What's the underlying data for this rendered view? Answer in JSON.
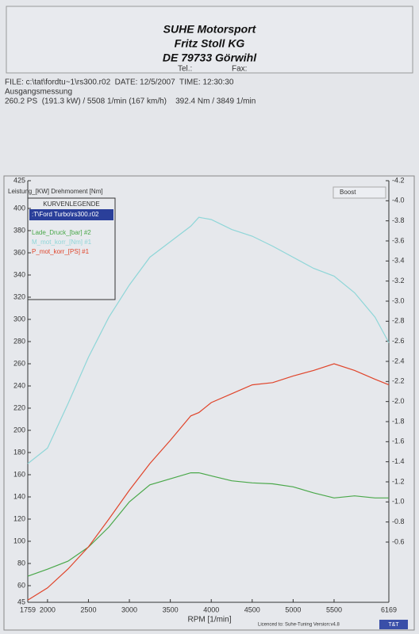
{
  "header": {
    "company": "SUHE Motorsport",
    "name": "Fritz Stoll KG",
    "address": "DE 79733 Görwihl",
    "tel": "Tel.:",
    "fax": "Fax:"
  },
  "info": {
    "file": "FILE: c:\\tat\\fordtu~1\\rs300.r02  DATE: 12/5/2007  TIME: 12:30:30",
    "description": "Ausgangsmessung",
    "summary": "260.2 PS  (191.3 kW) / 5508 1/min (167 km/h)    392.4 Nm / 3849 1/min"
  },
  "chart_data": {
    "type": "line",
    "y_label": "Leistung_[KW] Drehmoment [Nm]",
    "y2_label": "Boost",
    "x_label": "RPM  [1/min]",
    "legend_title": "KURVENLEGENDE",
    "file_label": ":T\\Ford Turbo\\rs300.r02",
    "x": [
      1759,
      2000,
      2250,
      2500,
      2750,
      3000,
      3250,
      3500,
      3750,
      3849,
      4000,
      4250,
      4500,
      4750,
      5000,
      5250,
      5500,
      5750,
      6000,
      6169
    ],
    "xlim": [
      1759,
      6169
    ],
    "xticks": [
      1759,
      2000,
      2500,
      3000,
      3500,
      4000,
      4500,
      5000,
      5500,
      6169
    ],
    "ylim": [
      45,
      425
    ],
    "yticks": [
      45,
      60,
      80,
      100,
      120,
      140,
      160,
      180,
      200,
      220,
      240,
      260,
      280,
      300,
      320,
      340,
      360,
      380,
      400,
      425
    ],
    "y2lim": [
      0,
      -4.2
    ],
    "y2ticks": [
      -4.2,
      {
        "value": -4,
        "label": "-4.0"
      },
      -3.8,
      -3.6,
      -3.4,
      -3.2,
      {
        "value": -3,
        "label": "-3.0"
      },
      -2.8,
      -2.6,
      -2.4,
      -2.2,
      {
        "value": -2,
        "label": "-2.0"
      },
      -1.8,
      -1.6,
      -1.4,
      -1.2,
      {
        "value": -1,
        "label": "-1.0"
      },
      -0.8,
      -0.6
    ],
    "grid": false,
    "series": [
      {
        "name": "Lade_Druck_[bar] #2",
        "color": "#4aa84a",
        "axis": "y2",
        "values": [
          -0.26,
          -0.33,
          -0.41,
          -0.55,
          -0.75,
          -1.0,
          -1.17,
          -1.23,
          -1.29,
          -1.29,
          -1.26,
          -1.21,
          -1.19,
          -1.18,
          -1.15,
          -1.09,
          -1.04,
          -1.06,
          -1.04,
          -1.04
        ]
      },
      {
        "name": "M_mot_korr_[Nm] #1",
        "color": "#8fd6d8",
        "values": [
          170,
          184,
          224,
          266,
          302,
          331,
          356,
          370,
          384,
          392,
          390,
          381,
          375,
          366,
          356,
          346,
          339,
          324,
          302,
          279
        ]
      },
      {
        "name": "P_mot_korr_[PS] #1",
        "color": "#e0442a",
        "values": [
          47,
          58,
          75,
          95,
          120,
          146,
          170,
          191,
          213,
          216,
          225,
          233,
          241,
          243,
          249,
          254,
          260,
          254,
          246,
          241
        ]
      }
    ]
  },
  "footer": {
    "licence": "Licenced to: Suhe-Tuning  Version:v4.8",
    "logo": "T&T"
  }
}
